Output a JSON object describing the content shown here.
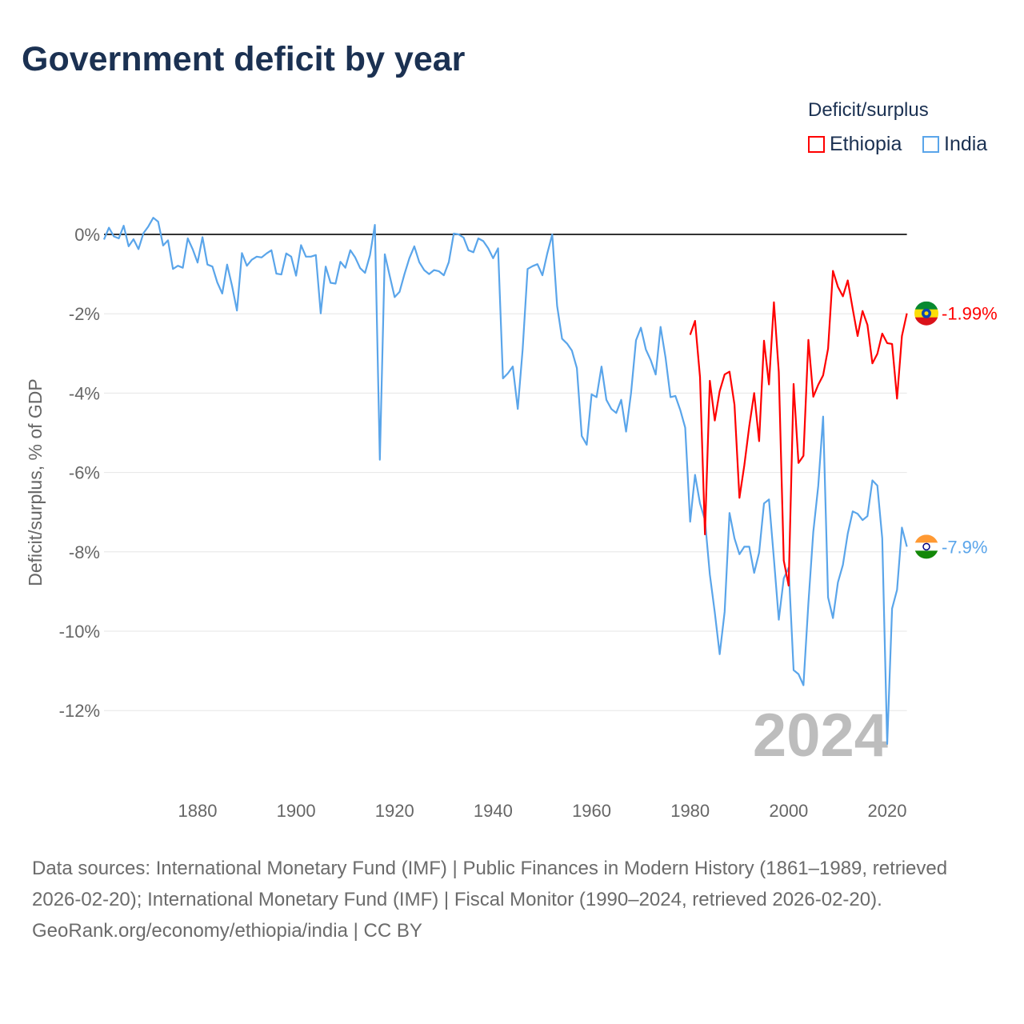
{
  "title": "Government deficit by year",
  "legend": {
    "title": "Deficit/surplus",
    "items": [
      {
        "label": "Ethiopia",
        "color": "#ff0000"
      },
      {
        "label": "India",
        "color": "#5aa5ea"
      }
    ]
  },
  "footer": {
    "sources": "Data sources: International Monetary Fund (IMF) | Public Finances in Modern History (1861–1989, retrieved 2026-02-20); International Monetary Fund (IMF) | Fiscal Monitor (1990–2024, retrieved 2026-02-20).",
    "credit": "GeoRank.org/economy/ethiopia/india | CC BY"
  },
  "chart_data": {
    "type": "line",
    "title": "Government deficit by year",
    "ylabel": "Deficit/surplus, % of GDP",
    "xlabel": "",
    "xlim": [
      1861,
      2024
    ],
    "ylim": [
      -13,
      0.5
    ],
    "yticks": [
      0,
      -2,
      -4,
      -6,
      -8,
      -10,
      -12
    ],
    "ytick_labels": [
      "0%",
      "-2%",
      "-4%",
      "-6%",
      "-8%",
      "-10%",
      "-12%"
    ],
    "xticks": [
      1880,
      1900,
      1920,
      1940,
      1960,
      1980,
      2000,
      2020
    ],
    "xtick_labels": [
      "1880",
      "1900",
      "1920",
      "1940",
      "1960",
      "1980",
      "2000",
      "2020"
    ],
    "year_watermark": "2024",
    "grid": true,
    "legend_position": "top-right",
    "series": [
      {
        "name": "Ethiopia",
        "color": "#ff0000",
        "start_year": 1980,
        "end_label": "-1.99%",
        "values": [
          -2.53,
          -2.18,
          -3.59,
          -7.56,
          -3.69,
          -4.69,
          -3.95,
          -3.53,
          -3.46,
          -4.29,
          -6.64,
          -5.82,
          -4.83,
          -4.0,
          -5.21,
          -2.68,
          -3.78,
          -1.71,
          -3.47,
          -8.22,
          -8.85,
          -3.77,
          -5.76,
          -5.58,
          -2.66,
          -4.09,
          -3.79,
          -3.55,
          -2.88,
          -0.92,
          -1.32,
          -1.56,
          -1.16,
          -1.88,
          -2.56,
          -1.93,
          -2.28,
          -3.25,
          -3.01,
          -2.5,
          -2.74,
          -2.76,
          -4.14,
          -2.56,
          -1.99
        ]
      },
      {
        "name": "India",
        "color": "#5aa5ea",
        "start_year": 1861,
        "end_label": "-7.9%",
        "values": [
          -0.13,
          0.17,
          -0.05,
          -0.1,
          0.22,
          -0.3,
          -0.12,
          -0.37,
          0.03,
          0.2,
          0.42,
          0.32,
          -0.28,
          -0.15,
          -0.87,
          -0.79,
          -0.84,
          -0.1,
          -0.37,
          -0.71,
          -0.07,
          -0.76,
          -0.81,
          -1.21,
          -1.49,
          -0.76,
          -1.3,
          -1.92,
          -0.47,
          -0.79,
          -0.64,
          -0.56,
          -0.58,
          -0.48,
          -0.4,
          -0.99,
          -1.01,
          -0.48,
          -0.56,
          -1.04,
          -0.27,
          -0.56,
          -0.56,
          -0.52,
          -1.99,
          -0.81,
          -1.22,
          -1.24,
          -0.69,
          -0.84,
          -0.4,
          -0.58,
          -0.85,
          -0.97,
          -0.52,
          0.24,
          -5.68,
          -0.5,
          -1.04,
          -1.58,
          -1.45,
          -1.0,
          -0.6,
          -0.3,
          -0.7,
          -0.9,
          -1.0,
          -0.9,
          -0.93,
          -1.03,
          -0.7,
          0.02,
          0,
          -0.08,
          -0.4,
          -0.45,
          -0.1,
          -0.17,
          -0.35,
          -0.6,
          -0.35,
          -3.63,
          -3.5,
          -3.33,
          -4.4,
          -2.9,
          -0.87,
          -0.8,
          -0.75,
          -1.03,
          -0.48,
          0,
          -1.8,
          -2.63,
          -2.75,
          -2.93,
          -3.37,
          -5.08,
          -5.3,
          -4.03,
          -4.1,
          -3.33,
          -4.17,
          -4.4,
          -4.5,
          -4.17,
          -4.97,
          -4.0,
          -2.67,
          -2.35,
          -2.9,
          -3.17,
          -3.53,
          -2.33,
          -3.1,
          -4.1,
          -4.07,
          -4.43,
          -4.87,
          -7.24,
          -6.06,
          -6.78,
          -7.2,
          -8.57,
          -9.53,
          -10.58,
          -9.51,
          -7.02,
          -7.66,
          -8.06,
          -7.87,
          -7.87,
          -8.53,
          -8.02,
          -6.78,
          -6.68,
          -8.18,
          -9.71,
          -8.67,
          -8.4,
          -10.98,
          -11.08,
          -11.36,
          -9.29,
          -7.5,
          -6.34,
          -4.59,
          -9.15,
          -9.67,
          -8.77,
          -8.33,
          -7.54,
          -6.98,
          -7.04,
          -7.2,
          -7.1,
          -6.2,
          -6.33,
          -7.66,
          -12.84,
          -9.43,
          -8.96,
          -7.39,
          -7.87
        ]
      }
    ]
  }
}
